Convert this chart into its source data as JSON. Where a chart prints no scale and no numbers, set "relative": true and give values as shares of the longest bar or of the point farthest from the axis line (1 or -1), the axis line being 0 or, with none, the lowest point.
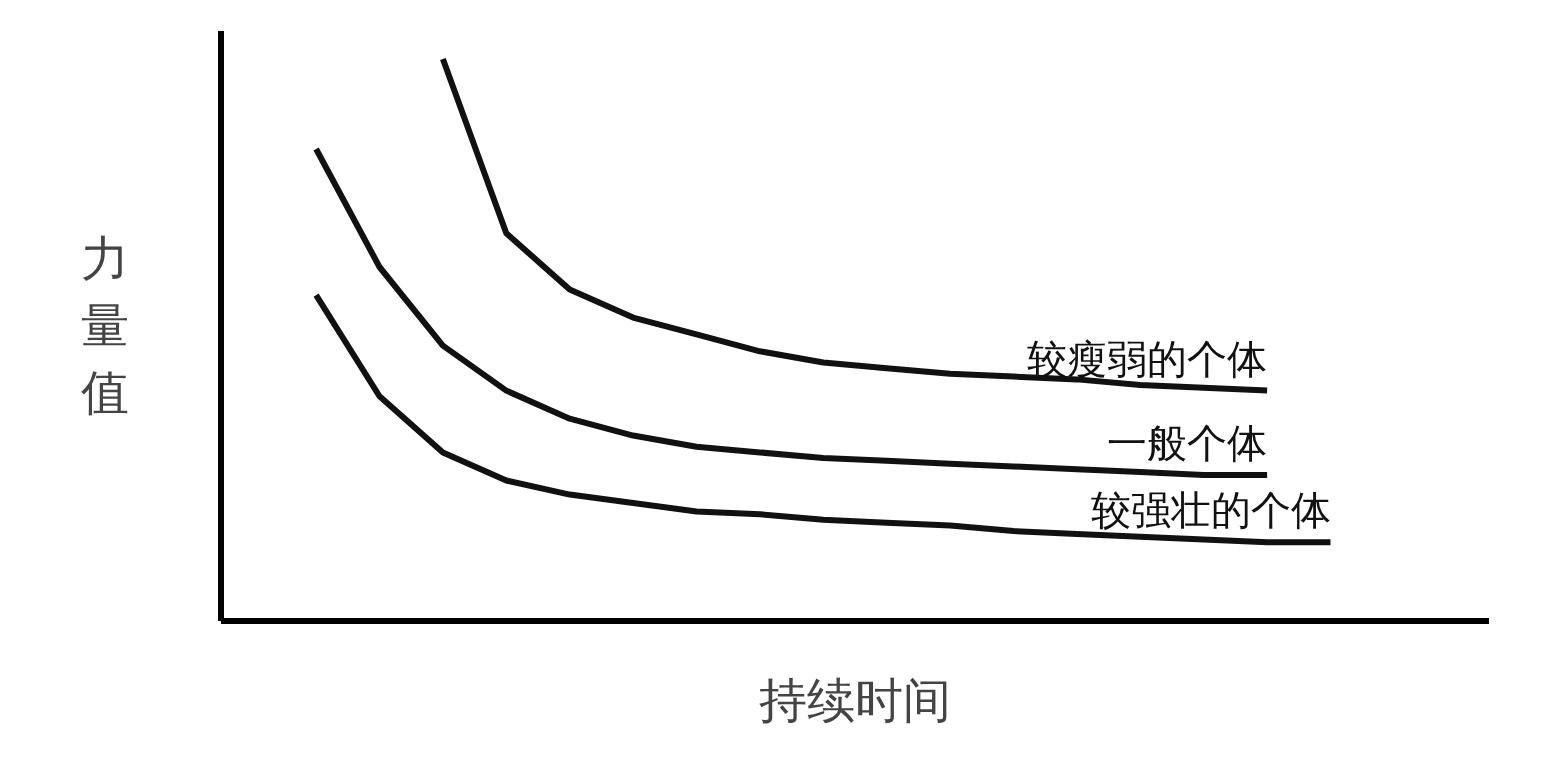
{
  "chart_data": {
    "type": "line",
    "relative": true,
    "xlabel": "持续时间",
    "ylabel": "力量值",
    "categories": [
      null,
      null,
      null,
      null,
      null,
      null,
      null,
      null,
      null,
      null,
      null,
      null,
      null,
      null,
      null,
      null,
      null,
      null,
      null,
      null
    ],
    "grid": false,
    "marker": "none",
    "line_style": "solid",
    "series": [
      {
        "name": "较强壮的个体",
        "color": "#111111",
        "values": [
          null,
          0.58,
          0.4,
          0.3,
          0.25,
          0.225,
          0.21,
          0.195,
          0.19,
          0.18,
          0.175,
          0.17,
          0.16,
          0.155,
          0.15,
          0.145,
          0.14,
          0.14,
          null,
          null
        ]
      },
      {
        "name": "一般个体",
        "color": "#111111",
        "values": [
          null,
          0.84,
          0.63,
          0.49,
          0.41,
          0.36,
          0.33,
          0.31,
          0.3,
          0.29,
          0.285,
          0.28,
          0.275,
          0.27,
          0.265,
          0.26,
          0.26,
          null,
          null,
          null
        ]
      },
      {
        "name": "较瘦弱的个体",
        "color": "#111111",
        "values": [
          null,
          null,
          null,
          1,
          0.69,
          0.59,
          0.54,
          0.51,
          0.48,
          0.46,
          0.45,
          0.44,
          0.435,
          0.43,
          0.42,
          0.415,
          0.41,
          null,
          null,
          null
        ]
      }
    ]
  }
}
